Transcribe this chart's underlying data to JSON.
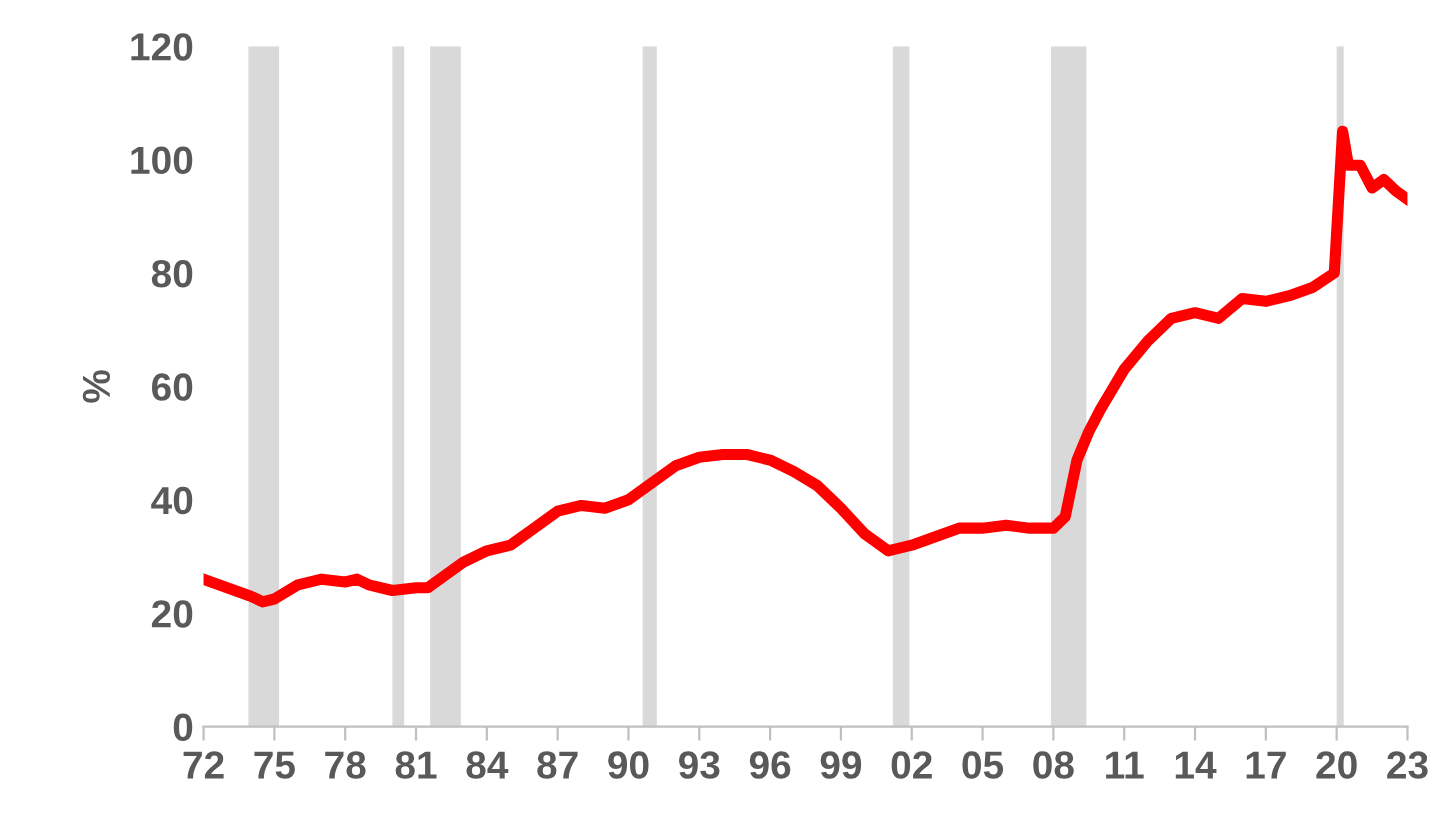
{
  "chart_data": {
    "type": "line",
    "ylabel": "%",
    "x": [
      1972,
      1973,
      1974,
      1974.5,
      1975,
      1976,
      1977,
      1978,
      1978.5,
      1979,
      1980,
      1981,
      1981.5,
      1982,
      1983,
      1984,
      1985,
      1986,
      1987,
      1988,
      1989,
      1990,
      1991,
      1992,
      1993,
      1994,
      1995,
      1996,
      1997,
      1998,
      1999,
      2000,
      2001,
      2002,
      2003,
      2004,
      2005,
      2006,
      2007,
      2008,
      2008.5,
      2009,
      2009.5,
      2010,
      2011,
      2012,
      2013,
      2014,
      2015,
      2016,
      2017,
      2018,
      2019,
      2019.9,
      2020.25,
      2020.5,
      2021,
      2021.5,
      2022,
      2022.5,
      2023
    ],
    "series": [
      {
        "color": "#ff0000",
        "values": [
          26,
          24.5,
          23,
          22,
          22.5,
          25,
          26,
          25.5,
          26,
          25,
          24,
          24.5,
          24.5,
          26,
          29,
          31,
          32,
          35,
          38,
          39,
          38.5,
          40,
          43,
          46,
          47.5,
          48,
          48,
          47,
          45,
          42.5,
          38.5,
          34,
          31,
          32,
          33.5,
          35,
          35,
          35.5,
          35,
          35,
          37,
          47,
          52,
          56,
          63,
          68,
          72,
          73,
          72,
          75.5,
          75,
          76,
          77.5,
          80,
          105,
          99,
          99,
          95,
          96.5,
          94.5,
          93
        ]
      }
    ],
    "xlim": [
      1972,
      2023
    ],
    "xticks": [
      {
        "value": 1972,
        "label": "72"
      },
      {
        "value": 1975,
        "label": "75"
      },
      {
        "value": 1978,
        "label": "78"
      },
      {
        "value": 1981,
        "label": "81"
      },
      {
        "value": 1984,
        "label": "84"
      },
      {
        "value": 1987,
        "label": "87"
      },
      {
        "value": 1990,
        "label": "90"
      },
      {
        "value": 1993,
        "label": "93"
      },
      {
        "value": 1996,
        "label": "96"
      },
      {
        "value": 1999,
        "label": "99"
      },
      {
        "value": 2002,
        "label": "02"
      },
      {
        "value": 2005,
        "label": "05"
      },
      {
        "value": 2008,
        "label": "08"
      },
      {
        "value": 2011,
        "label": "11"
      },
      {
        "value": 2014,
        "label": "14"
      },
      {
        "value": 2017,
        "label": "17"
      },
      {
        "value": 2020,
        "label": "20"
      },
      {
        "value": 2023,
        "label": "23"
      }
    ],
    "ylim": [
      0,
      120
    ],
    "yticks": [
      0,
      20,
      40,
      60,
      80,
      100,
      120
    ],
    "bands": [
      {
        "axis": "x",
        "from": 1973.9,
        "to": 1975.2,
        "color": "#d9d9d9"
      },
      {
        "axis": "x",
        "from": 1980.0,
        "to": 1980.5,
        "color": "#d9d9d9"
      },
      {
        "axis": "x",
        "from": 1981.6,
        "to": 1982.9,
        "color": "#d9d9d9"
      },
      {
        "axis": "x",
        "from": 1990.6,
        "to": 1991.2,
        "color": "#d9d9d9"
      },
      {
        "axis": "x",
        "from": 2001.2,
        "to": 2001.9,
        "color": "#d9d9d9"
      },
      {
        "axis": "x",
        "from": 2007.9,
        "to": 2009.4,
        "color": "#d9d9d9"
      },
      {
        "axis": "x",
        "from": 2020.0,
        "to": 2020.3,
        "color": "#d9d9d9"
      }
    ],
    "grid": false,
    "marker": "none",
    "line_style": "solid"
  }
}
